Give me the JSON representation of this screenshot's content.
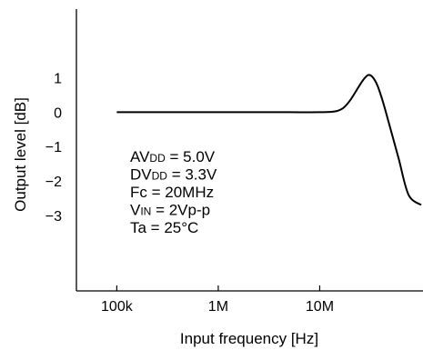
{
  "chart_data": {
    "type": "line",
    "xlabel": "Input frequency [Hz]",
    "ylabel": "Output level [dB]",
    "x_scale": "log",
    "xlim": [
      40000,
      100000000
    ],
    "ylim": [
      -5.2,
      3.0
    ],
    "x_ticks": [
      {
        "value": 100000,
        "label": "100k"
      },
      {
        "value": 1000000,
        "label": "1M"
      },
      {
        "value": 10000000,
        "label": "10M"
      }
    ],
    "y_ticks": [
      {
        "value": 1,
        "label": "1"
      },
      {
        "value": 0,
        "label": "0"
      },
      {
        "value": -1,
        "label": "−1"
      },
      {
        "value": -2,
        "label": "−2"
      },
      {
        "value": -3,
        "label": "−3"
      }
    ],
    "grid": false,
    "series": [
      {
        "x": [
          100000,
          200000,
          500000,
          1000000,
          2000000,
          5000000,
          10000000,
          14000000,
          17000000,
          20000000,
          24000000,
          27000000,
          30000000,
          33000000,
          37000000,
          42000000,
          50000000,
          60000000,
          75000000,
          100000000
        ],
        "y": [
          0,
          0,
          0,
          0,
          0,
          0,
          0,
          0.02,
          0.12,
          0.35,
          0.72,
          0.95,
          1.08,
          1.03,
          0.78,
          0.3,
          -0.5,
          -1.35,
          -2.4,
          -2.7
        ]
      }
    ],
    "annotations": [
      {
        "main": "AV",
        "sub": "DD",
        "rest": " = 5.0V"
      },
      {
        "main": "DV",
        "sub": "DD",
        "rest": " = 3.3V"
      },
      {
        "main": "Fc = 20MHz",
        "sub": "",
        "rest": ""
      },
      {
        "main": "V",
        "sub": "IN",
        "rest": " = 2Vp-p"
      },
      {
        "main": "Ta = 25°C",
        "sub": "",
        "rest": ""
      }
    ],
    "colors": {
      "line": "#000000",
      "axis": "#000000",
      "background": "#ffffff"
    }
  }
}
